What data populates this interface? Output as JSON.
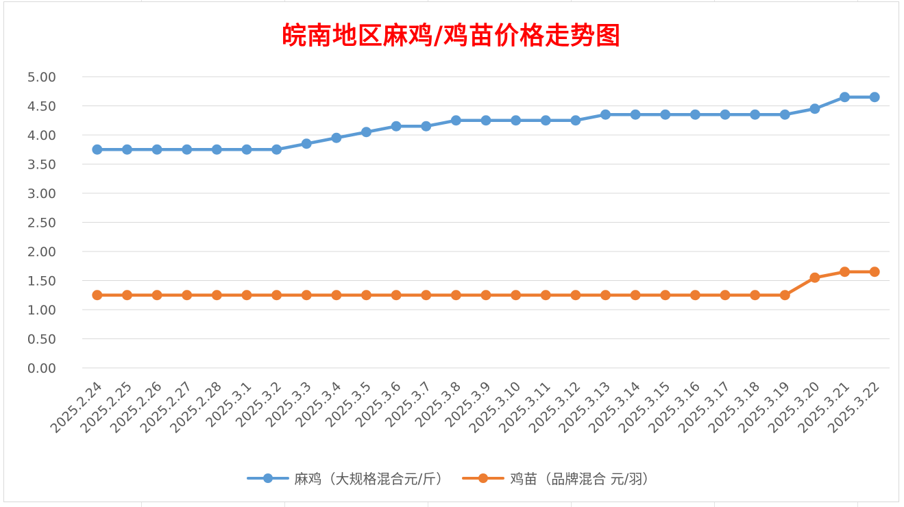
{
  "chart_data": {
    "type": "line",
    "title": "皖南地区麻鸡/鸡苗价格走势图",
    "categories": [
      "2025.2.24",
      "2025.2.25",
      "2025.2.26",
      "2025.2.27",
      "2025.2.28",
      "2025.3.1",
      "2025.3.2",
      "2025.3.3",
      "2025.3.4",
      "2025.3.5",
      "2025.3.6",
      "2025.3.7",
      "2025.3.8",
      "2025.3.9",
      "2025.3.10",
      "2025.3.11",
      "2025.3.12",
      "2025.3.13",
      "2025.3.14",
      "2025.3.15",
      "2025.3.16",
      "2025.3.17",
      "2025.3.18",
      "2025.3.19",
      "2025.3.20",
      "2025.3.21",
      "2025.3.22"
    ],
    "y_ticks": [
      "0.00",
      "0.50",
      "1.00",
      "1.50",
      "2.00",
      "2.50",
      "3.00",
      "3.50",
      "4.00",
      "4.50",
      "5.00"
    ],
    "ylim": [
      0,
      5
    ],
    "grid": true,
    "legend_position": "bottom",
    "series": [
      {
        "name": "麻鸡（大规格混合元/斤）",
        "color": "#5b9bd5",
        "values": [
          3.75,
          3.75,
          3.75,
          3.75,
          3.75,
          3.75,
          3.75,
          3.85,
          3.95,
          4.05,
          4.15,
          4.15,
          4.25,
          4.25,
          4.25,
          4.25,
          4.25,
          4.35,
          4.35,
          4.35,
          4.35,
          4.35,
          4.35,
          4.35,
          4.45,
          4.65,
          4.65
        ]
      },
      {
        "name": "鸡苗（品牌混合 元/羽）",
        "color": "#ed7d31",
        "values": [
          1.25,
          1.25,
          1.25,
          1.25,
          1.25,
          1.25,
          1.25,
          1.25,
          1.25,
          1.25,
          1.25,
          1.25,
          1.25,
          1.25,
          1.25,
          1.25,
          1.25,
          1.25,
          1.25,
          1.25,
          1.25,
          1.25,
          1.25,
          1.25,
          1.55,
          1.65,
          1.65
        ]
      }
    ]
  }
}
